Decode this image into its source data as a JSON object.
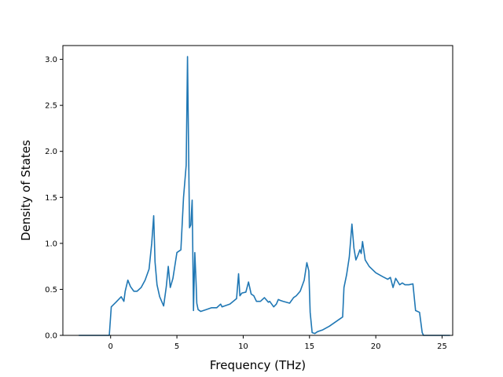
{
  "chart_data": {
    "type": "line",
    "title": "",
    "xlabel": "Frequency (THz)",
    "ylabel": "Density of States",
    "xlim": [
      -3.6,
      25.8
    ],
    "ylim": [
      0.0,
      3.15
    ],
    "grid": false,
    "legend": "none",
    "xticks": [
      0,
      5,
      10,
      15,
      20,
      25
    ],
    "xtick_labels": [
      "0",
      "5",
      "10",
      "15",
      "20",
      "25"
    ],
    "yticks": [
      0.0,
      0.5,
      1.0,
      1.5,
      2.0,
      2.5,
      3.0
    ],
    "ytick_labels": [
      "0.0",
      "0.5",
      "1.0",
      "1.5",
      "2.0",
      "2.5",
      "3.0"
    ],
    "series": [
      {
        "color": "#1f77b4",
        "x": [
          -2.4,
          -0.1,
          0.05,
          0.4,
          0.8,
          1.0,
          1.1,
          1.3,
          1.5,
          1.75,
          2.0,
          2.3,
          2.6,
          2.9,
          3.1,
          3.25,
          3.35,
          3.5,
          3.7,
          4.0,
          4.2,
          4.35,
          4.5,
          4.7,
          5.0,
          5.3,
          5.5,
          5.7,
          5.8,
          5.95,
          6.05,
          6.15,
          6.2,
          6.25,
          6.35,
          6.45,
          6.5,
          6.6,
          6.8,
          7.2,
          7.6,
          8.0,
          8.3,
          8.4,
          8.6,
          9.0,
          9.5,
          9.65,
          9.75,
          9.9,
          10.2,
          10.4,
          10.6,
          10.8,
          11.0,
          11.3,
          11.6,
          11.9,
          12.0,
          12.3,
          12.5,
          12.65,
          12.8,
          13.0,
          13.5,
          13.8,
          14.0,
          14.3,
          14.6,
          14.8,
          14.95,
          15.05,
          15.2,
          15.4,
          15.6,
          15.8,
          16.0,
          16.5,
          17.0,
          17.5,
          17.6,
          17.8,
          18.0,
          18.2,
          18.35,
          18.5,
          18.65,
          18.8,
          18.9,
          19.0,
          19.2,
          19.5,
          20.0,
          20.5,
          20.9,
          21.1,
          21.3,
          21.5,
          21.8,
          22.0,
          22.2,
          22.5,
          22.8,
          23.0,
          23.3,
          23.5,
          23.6,
          25.6
        ],
        "y": [
          0.0,
          0.0,
          0.31,
          0.36,
          0.42,
          0.37,
          0.48,
          0.6,
          0.53,
          0.48,
          0.48,
          0.52,
          0.6,
          0.72,
          1.0,
          1.3,
          0.8,
          0.55,
          0.42,
          0.32,
          0.53,
          0.75,
          0.52,
          0.62,
          0.9,
          0.93,
          1.5,
          1.85,
          3.03,
          1.17,
          1.2,
          1.47,
          0.9,
          0.27,
          0.9,
          0.56,
          0.35,
          0.28,
          0.26,
          0.28,
          0.3,
          0.3,
          0.34,
          0.31,
          0.32,
          0.34,
          0.4,
          0.67,
          0.43,
          0.46,
          0.47,
          0.58,
          0.45,
          0.43,
          0.37,
          0.37,
          0.41,
          0.36,
          0.37,
          0.31,
          0.34,
          0.39,
          0.38,
          0.37,
          0.35,
          0.41,
          0.43,
          0.48,
          0.6,
          0.79,
          0.7,
          0.25,
          0.03,
          0.02,
          0.04,
          0.05,
          0.06,
          0.1,
          0.15,
          0.2,
          0.52,
          0.66,
          0.85,
          1.21,
          0.95,
          0.82,
          0.87,
          0.93,
          0.89,
          1.02,
          0.82,
          0.75,
          0.68,
          0.64,
          0.61,
          0.63,
          0.52,
          0.62,
          0.55,
          0.57,
          0.55,
          0.55,
          0.56,
          0.27,
          0.25,
          0.03,
          0.0,
          0.0
        ]
      }
    ]
  }
}
